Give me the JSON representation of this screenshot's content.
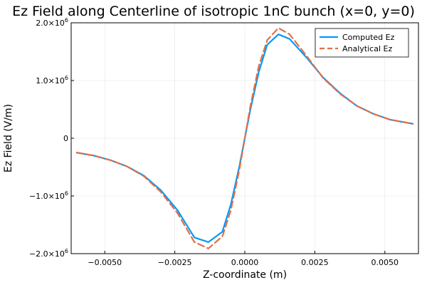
{
  "chart_data": {
    "type": "line",
    "title": "Ez Field along Centerline of isotropic 1nC bunch (x=0, y=0)",
    "xlabel": "Z-coordinate (m)",
    "ylabel": "Ez Field (V/m)",
    "xlim": [
      -0.0062,
      0.0062
    ],
    "ylim": [
      -2000000,
      2000000
    ],
    "grid": true,
    "legend_position": "top-right",
    "x_ticks": [
      {
        "value": -0.005,
        "label": "−0.0050"
      },
      {
        "value": -0.0025,
        "label": "−0.0025"
      },
      {
        "value": 0.0,
        "label": "0.0000"
      },
      {
        "value": 0.0025,
        "label": "0.0025"
      },
      {
        "value": 0.005,
        "label": "0.0050"
      }
    ],
    "y_ticks": [
      {
        "value": -2000000,
        "mantissa": "−2.0×10",
        "exp": "6"
      },
      {
        "value": -1000000,
        "mantissa": "−1.0×10",
        "exp": "6"
      },
      {
        "value": 0,
        "mantissa": "0",
        "exp": ""
      },
      {
        "value": 1000000,
        "mantissa": "1.0×10",
        "exp": "6"
      },
      {
        "value": 2000000,
        "mantissa": "2.0×10",
        "exp": "6"
      }
    ],
    "series": [
      {
        "name": "Computed Ez",
        "color": "#009AFA",
        "dash": "solid",
        "x": [
          -0.006,
          -0.0054,
          -0.0048,
          -0.0042,
          -0.0036,
          -0.003,
          -0.0024,
          -0.0018,
          -0.0013,
          -0.0008,
          -0.0005,
          -0.0002,
          0.0,
          0.0002,
          0.0005,
          0.0008,
          0.0012,
          0.0016,
          0.0022,
          0.0028,
          0.0034,
          0.004,
          0.0046,
          0.0052,
          0.006
        ],
        "y": [
          -250000,
          -300000,
          -380000,
          -490000,
          -650000,
          -900000,
          -1250000,
          -1720000,
          -1800000,
          -1620000,
          -1150000,
          -500000,
          0,
          500000,
          1150000,
          1620000,
          1800000,
          1720000,
          1400000,
          1050000,
          780000,
          560000,
          420000,
          320000,
          250000
        ]
      },
      {
        "name": "Analytical Ez",
        "color": "#E26F46",
        "dash": "dashed",
        "x": [
          -0.006,
          -0.0054,
          -0.0048,
          -0.0042,
          -0.0036,
          -0.003,
          -0.0024,
          -0.0018,
          -0.0013,
          -0.0008,
          -0.0005,
          -0.0002,
          0.0,
          0.0002,
          0.0005,
          0.0008,
          0.0012,
          0.0016,
          0.0022,
          0.0028,
          0.0034,
          0.004,
          0.0046,
          0.0052,
          0.006
        ],
        "y": [
          -250000,
          -300000,
          -380000,
          -490000,
          -660000,
          -930000,
          -1300000,
          -1800000,
          -1910000,
          -1700000,
          -1250000,
          -560000,
          0,
          560000,
          1250000,
          1700000,
          1910000,
          1800000,
          1430000,
          1040000,
          770000,
          560000,
          420000,
          320000,
          250000
        ]
      }
    ]
  }
}
